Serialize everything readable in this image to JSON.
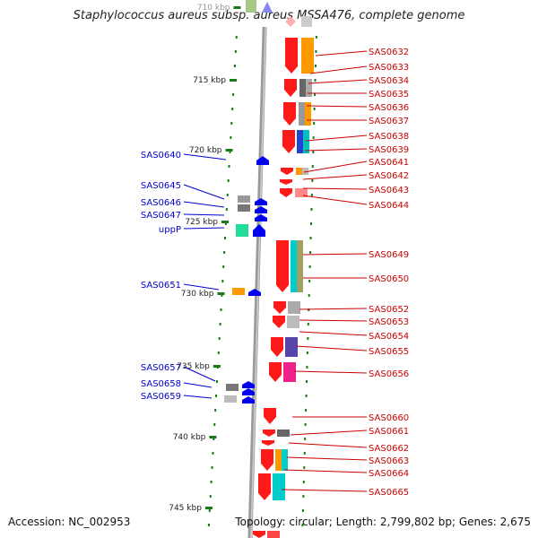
{
  "title": "Staphylococcus aureus subsp. aureus MSSA476, complete genome",
  "footer": {
    "accession": "Accession: NC_002953",
    "summary": "Topology: circular; Length: 2,799,802 bp; Genes: 2,675"
  },
  "ticks": [
    {
      "label": "710 kbp"
    },
    {
      "label": "715 kbp"
    },
    {
      "label": "720 kbp"
    },
    {
      "label": "725 kbp"
    },
    {
      "label": "730 kbp"
    },
    {
      "label": "735 kbp"
    },
    {
      "label": "740 kbp"
    },
    {
      "label": "745 kbp"
    }
  ],
  "right_labels": [
    "SAS0632",
    "SAS0633",
    "SAS0634",
    "SAS0635",
    "SAS0636",
    "SAS0637",
    "SAS0638",
    "SAS0639",
    "SAS0641",
    "SAS0642",
    "SAS0643",
    "SAS0644",
    "SAS0649",
    "SAS0650",
    "SAS0652",
    "SAS0653",
    "SAS0654",
    "SAS0655",
    "SAS0656",
    "SAS0660",
    "SAS0661",
    "SAS0662",
    "SAS0663",
    "SAS0664",
    "SAS0665"
  ],
  "left_labels": [
    "SAS0640",
    "SAS0645",
    "SAS0646",
    "SAS0647",
    "uppP",
    "SAS0651",
    "SAS0657",
    "SAS0658",
    "SAS0659"
  ],
  "colors": {
    "forward_gene": "#ff1a1a",
    "reverse_gene": "#0000ee",
    "label_right": "#cc0000",
    "label_left": "#0000cc",
    "backbone": "#9a9a9a",
    "tick": "#1a7a1a"
  }
}
